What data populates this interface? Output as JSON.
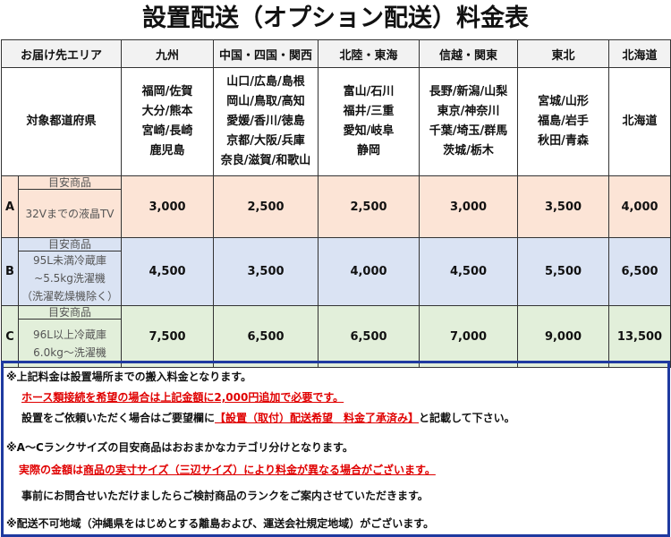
{
  "title": "設置配送（オプション配送）料金表",
  "header": {
    "area_label": "お届け先エリア",
    "regions": [
      "九州",
      "中国・四国・関西",
      "北陸・東海",
      "信越・関東",
      "東北",
      "北海道"
    ]
  },
  "prefectures": {
    "label": "対象都道府県",
    "by_region": [
      [
        "福岡/佐賀",
        "大分/熊本",
        "宮崎/長崎",
        "鹿児島"
      ],
      [
        "山口/広島/島根",
        "岡山/鳥取/高知",
        "愛媛/香川/徳島",
        "京都/大阪/兵庫",
        "奈良/滋賀/和歌山"
      ],
      [
        "富山/石川",
        "福井/三重",
        "愛知/岐阜",
        "静岡"
      ],
      [
        "長野/新潟/山梨",
        "東京/神奈川",
        "千葉/埼玉/群馬",
        "茨城/栃木"
      ],
      [
        "宮城/山形",
        "福島/岩手",
        "秋田/青森"
      ],
      [
        "北海道"
      ]
    ]
  },
  "ranks": [
    {
      "rank": "A",
      "guide_label": "目安商品",
      "items": [
        "32Vまでの液晶TV"
      ],
      "prices": [
        "3,000",
        "2,500",
        "2,500",
        "3,000",
        "3,500",
        "4,000"
      ],
      "color": "#fce4d6"
    },
    {
      "rank": "B",
      "guide_label": "目安商品",
      "items": [
        "95L未満冷蔵庫",
        "~5.5kg洗濯機",
        "（洗濯乾燥機除く）"
      ],
      "prices": [
        "4,500",
        "3,500",
        "4,000",
        "4,500",
        "5,500",
        "6,500"
      ],
      "color": "#dae3f3"
    },
    {
      "rank": "C",
      "guide_label": "目安商品",
      "items": [
        "96L以上冷蔵庫",
        "6.0kg～洗濯機"
      ],
      "prices": [
        "7,500",
        "6,500",
        "6,500",
        "7,000",
        "9,000",
        "13,500"
      ],
      "color": "#e2efda"
    }
  ],
  "notes": {
    "n1": "※上記料金は設置場所までの搬入料金となります。",
    "n1_red": "ホース類接続を希望の場合は上記金額に2,000円追加で必要です。",
    "n1_sub_a": "設置をご依頼いただく場合はご要望欄に",
    "n1_sub_red": "【設置（取付）配送希望　料金了承済み】",
    "n1_sub_b": "と記載して下さい。",
    "n2": "※A～Cランクサイズの目安商品はおおまかなカテゴリ分けとなります。",
    "n2_red_a": "実際の金額は",
    "n2_red_b": "商品の実寸サイズ（三辺サイズ）により料金が異なる場合がございます。",
    "n2_sub": "事前にお問合せいただけましたらご検討商品のランクをご案内させていただきます。",
    "n3": "※配送不可地域（沖縄県をはじめとする離島および、運送会社規定地域）がございます。"
  }
}
